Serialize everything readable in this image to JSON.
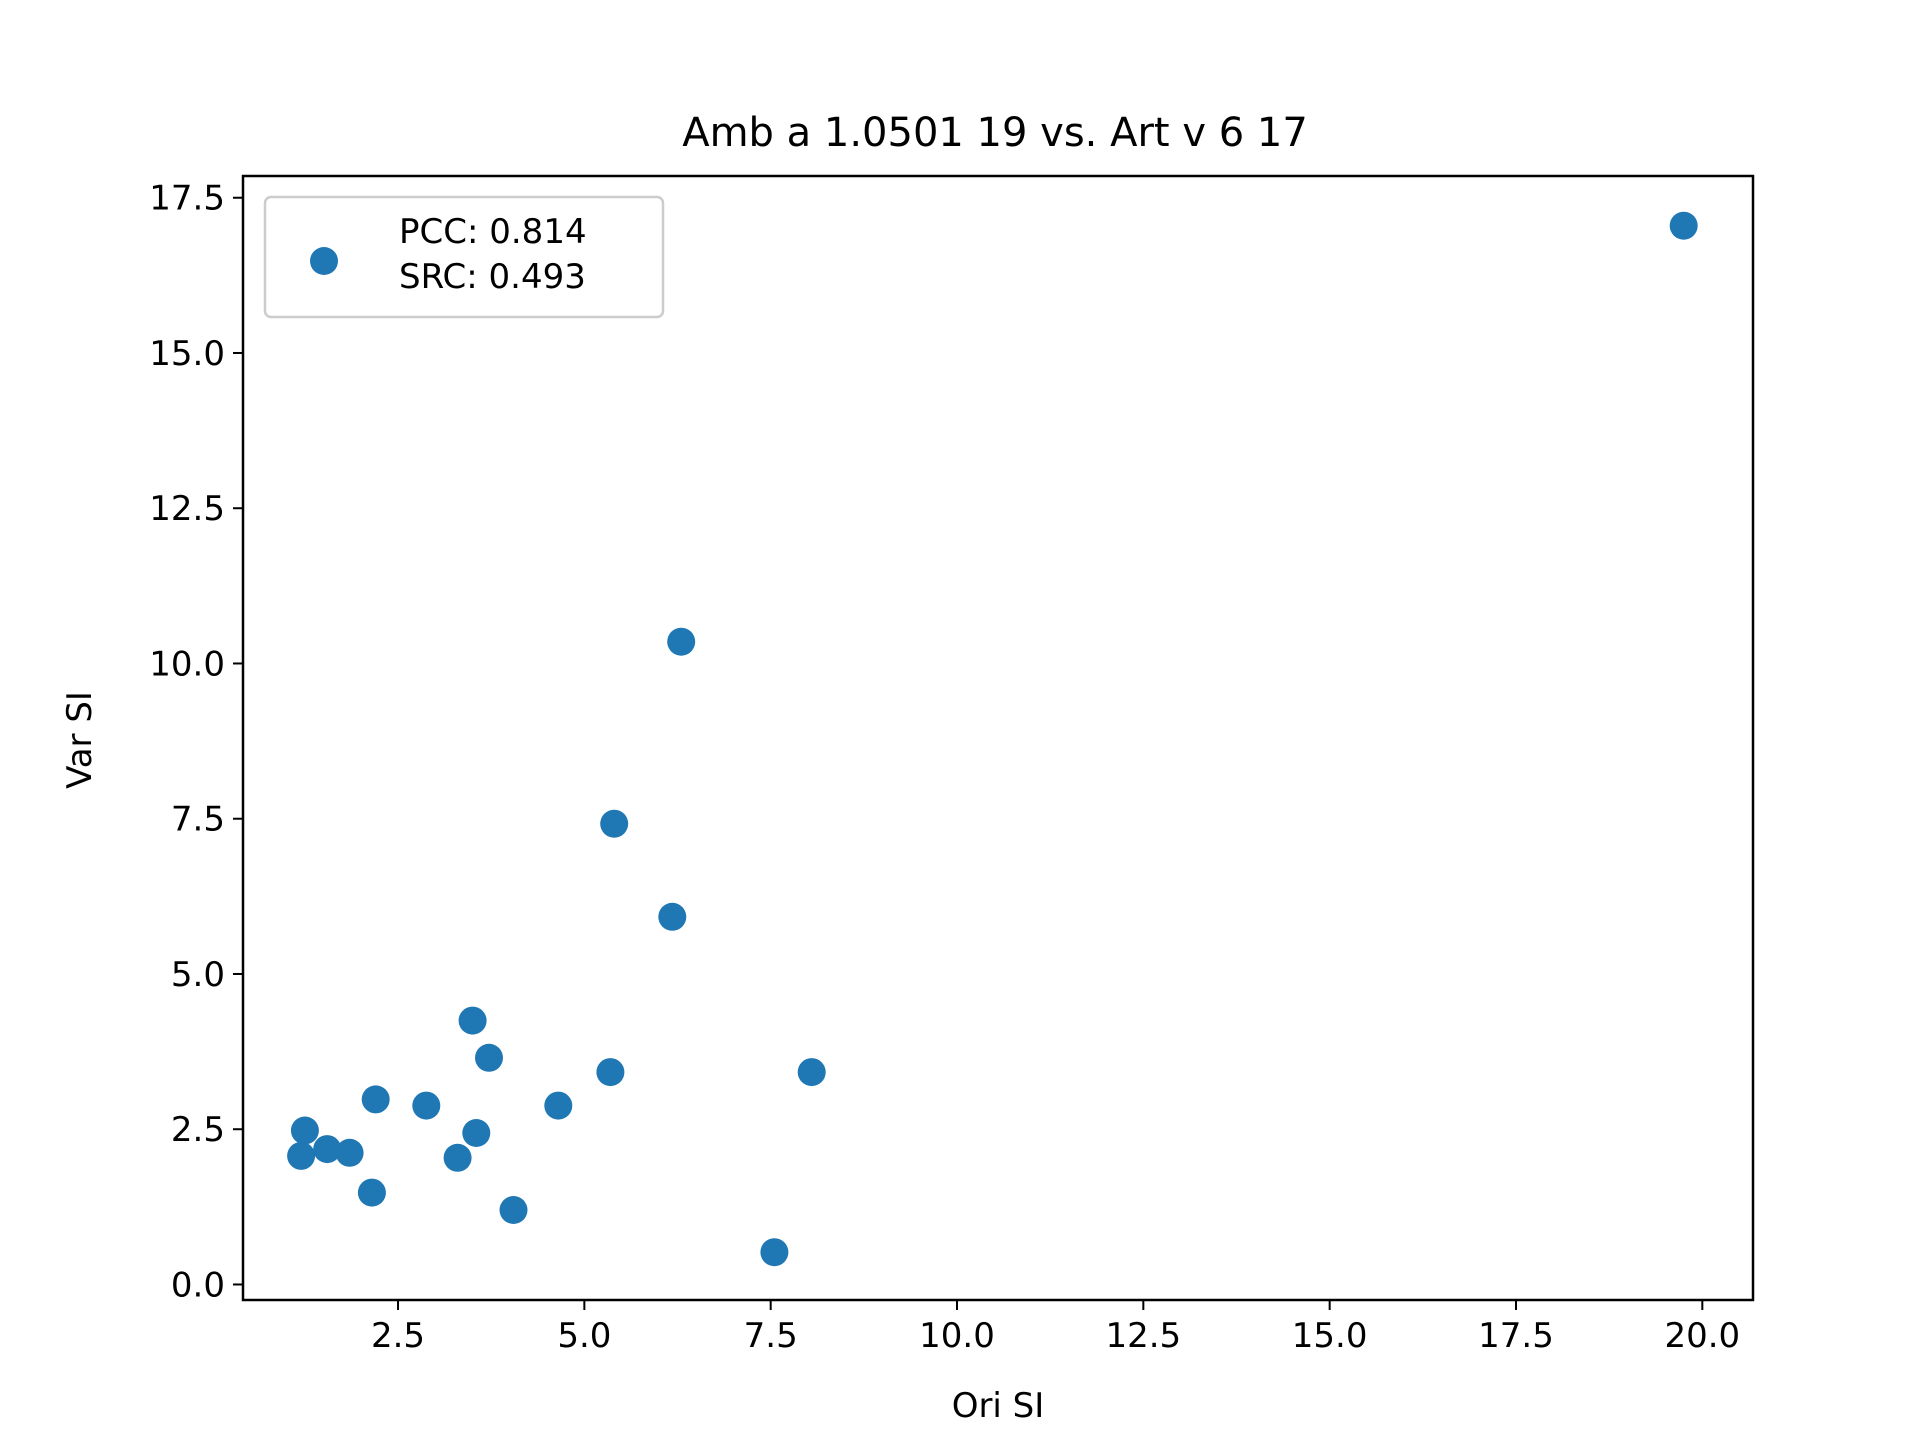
{
  "chart_data": {
    "type": "scatter",
    "title": "Amb a 1.0501 19 vs. Art v 6 17",
    "xlabel": "Ori SI",
    "ylabel": "Var SI",
    "xlim": [
      0.42,
      20.68
    ],
    "ylim": [
      -0.25,
      17.85
    ],
    "xticks": [
      "2.5",
      "5.0",
      "7.5",
      "10.0",
      "12.5",
      "15.0",
      "17.5",
      "20.0"
    ],
    "yticks": [
      "0.0",
      "2.5",
      "5.0",
      "7.5",
      "10.0",
      "12.5",
      "15.0",
      "17.5"
    ],
    "grid": false,
    "legend": {
      "placement": "upper-left",
      "lines": [
        "PCC: 0.814",
        "SRC: 0.493"
      ]
    },
    "marker_color": "#1f77b4",
    "series": [
      {
        "points": [
          {
            "x": 19.75,
            "y": 17.05
          },
          {
            "x": 6.3,
            "y": 10.35
          },
          {
            "x": 5.4,
            "y": 7.42
          },
          {
            "x": 6.18,
            "y": 5.92
          },
          {
            "x": 3.5,
            "y": 4.25
          },
          {
            "x": 3.72,
            "y": 3.65
          },
          {
            "x": 5.35,
            "y": 3.42
          },
          {
            "x": 8.05,
            "y": 3.42
          },
          {
            "x": 2.2,
            "y": 2.98
          },
          {
            "x": 2.88,
            "y": 2.88
          },
          {
            "x": 4.65,
            "y": 2.88
          },
          {
            "x": 1.25,
            "y": 2.48
          },
          {
            "x": 3.55,
            "y": 2.44
          },
          {
            "x": 1.55,
            "y": 2.18
          },
          {
            "x": 1.85,
            "y": 2.12
          },
          {
            "x": 1.2,
            "y": 2.07
          },
          {
            "x": 3.3,
            "y": 2.04
          },
          {
            "x": 2.15,
            "y": 1.48
          },
          {
            "x": 4.05,
            "y": 1.2
          },
          {
            "x": 7.55,
            "y": 0.52
          }
        ]
      }
    ]
  }
}
